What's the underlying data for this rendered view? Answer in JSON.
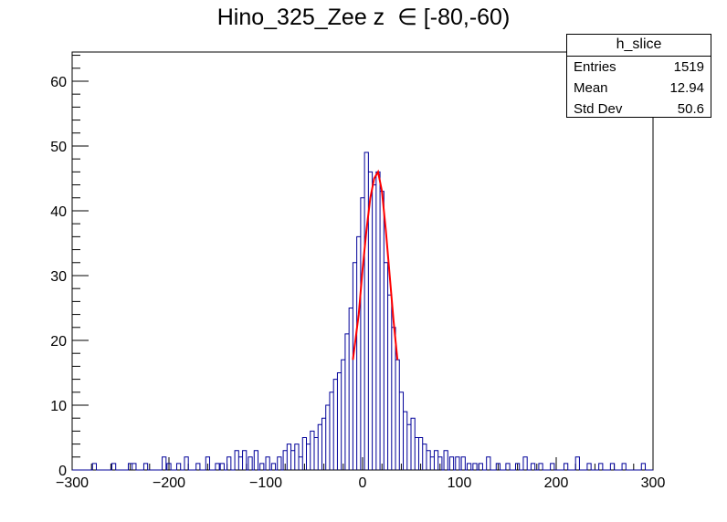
{
  "title": "Hino_325_Zee z  ∈ [-80,-60)",
  "stats": {
    "name": "h_slice",
    "rows": [
      {
        "label": "Entries",
        "value": "1519"
      },
      {
        "label": "Mean",
        "value": "12.94"
      },
      {
        "label": "Std Dev",
        "value": "50.6"
      }
    ]
  },
  "chart_data": {
    "type": "histogram",
    "xlim": [
      -300,
      300
    ],
    "ylim": [
      0,
      64.5
    ],
    "x_ticks": [
      -300,
      -200,
      -100,
      0,
      100,
      200,
      300
    ],
    "y_ticks": [
      0,
      10,
      20,
      30,
      40,
      50,
      60
    ],
    "series": [
      {
        "role": "histogram",
        "color": "#000099",
        "x": [
          -277,
          -257,
          -240,
          -236,
          -224,
          -205,
          -200,
          -190,
          -182,
          -170,
          -160,
          -150,
          -145,
          -138,
          -130,
          -126,
          -122,
          -116,
          -110,
          -104,
          -98,
          -92,
          -86,
          -80,
          -76,
          -72,
          -68,
          -64,
          -60,
          -56,
          -52,
          -48,
          -44,
          -40,
          -36,
          -32,
          -28,
          -24,
          -20,
          -16,
          -12,
          -8,
          -4,
          0,
          4,
          8,
          12,
          16,
          20,
          24,
          28,
          32,
          36,
          40,
          44,
          48,
          52,
          56,
          60,
          64,
          68,
          72,
          76,
          80,
          86,
          92,
          98,
          104,
          110,
          116,
          122,
          130,
          140,
          150,
          160,
          168,
          176,
          184,
          196,
          210,
          222,
          234,
          246,
          258,
          270,
          290
        ],
        "values": [
          1,
          1,
          1,
          1,
          1,
          2,
          1,
          1,
          2,
          1,
          2,
          1,
          1,
          2,
          3,
          2,
          3,
          2,
          3,
          1,
          2,
          1,
          2,
          3,
          4,
          3,
          4,
          2,
          5,
          4,
          6,
          5,
          7,
          8,
          10,
          12,
          14,
          15,
          17,
          21,
          25,
          32,
          36,
          42,
          49,
          46,
          44,
          46,
          43,
          32,
          27,
          22,
          17,
          12,
          9,
          7,
          8,
          5,
          5,
          4,
          3,
          2,
          3,
          2,
          3,
          2,
          2,
          2,
          1,
          1,
          1,
          2,
          1,
          1,
          1,
          2,
          1,
          1,
          1,
          1,
          2,
          1,
          1,
          1,
          1,
          1
        ]
      },
      {
        "role": "fit",
        "color": "#ff0000",
        "x": [
          -10,
          -4,
          0,
          4,
          8,
          12,
          16,
          20,
          24,
          28,
          32,
          36
        ],
        "values": [
          17,
          24,
          31,
          37,
          42,
          45,
          46,
          43,
          37,
          30,
          23,
          17
        ]
      }
    ]
  }
}
